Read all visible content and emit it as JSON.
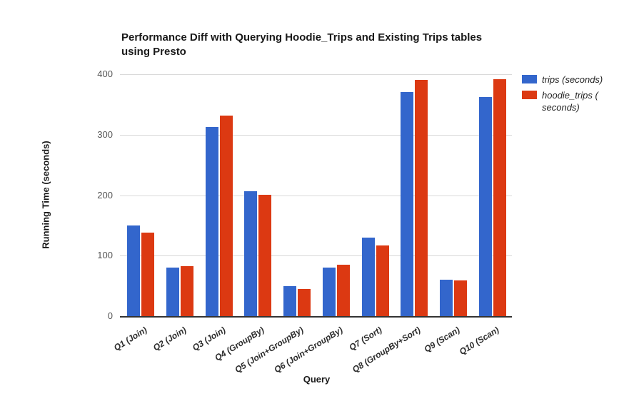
{
  "chart": {
    "title_lines": [
      "Performance Diff with Querying Hoodie_Trips and Existing Trips tables",
      "using Presto"
    ]
  },
  "chart_data": {
    "type": "bar",
    "title": "Performance Diff with Querying Hoodie_Trips and Existing Trips tables using Presto",
    "xlabel": "Query",
    "ylabel": "Running Time (seconds)",
    "categories": [
      "Q1 (Join)",
      "Q2 (Join)",
      "Q3 (Join)",
      "Q4 (GroupBy)",
      "Q5 (Join+GroupBy)",
      "Q6 (Join+GroupBy)",
      "Q7 (Sort)",
      "Q8 (GroupBy+Sort)",
      "Q9 (Scan)",
      "Q10 (Scan)"
    ],
    "series": [
      {
        "name": "trips (seconds)",
        "color": "#3366CC",
        "values": [
          150,
          80,
          313,
          207,
          50,
          80,
          130,
          370,
          60,
          362
        ]
      },
      {
        "name": "hoodie_trips ( seconds)",
        "color": "#DC3912",
        "values": [
          138,
          83,
          332,
          201,
          45,
          85,
          117,
          390,
          59,
          392
        ]
      }
    ],
    "ylim": [
      0,
      400
    ],
    "yticks": [
      0,
      100,
      200,
      300,
      400
    ],
    "grid": true,
    "legend_position": "top-right",
    "colors": {
      "gridline": "#d9d9d9",
      "axis_line": "#333333",
      "tick_label": "#555555",
      "category_label": "#2b2b2b",
      "title": "#1a1a1a"
    }
  }
}
